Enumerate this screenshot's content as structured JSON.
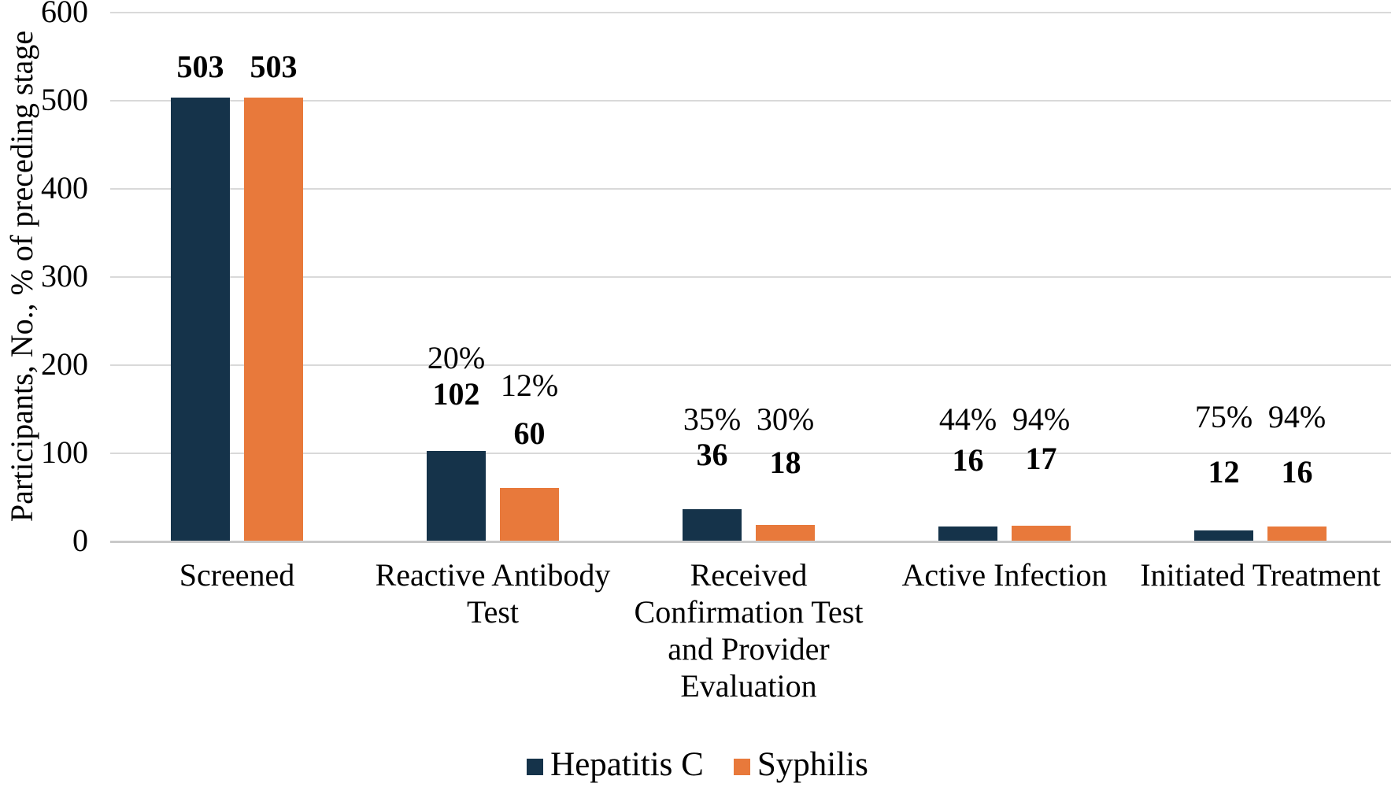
{
  "chart_data": {
    "type": "bar",
    "title": "",
    "xlabel": "",
    "ylabel": "Participants, No., % of preceding stage",
    "ylim": [
      0,
      600
    ],
    "yticks": [
      600,
      500,
      400,
      300,
      200,
      100,
      0
    ],
    "grid": true,
    "legend_position": "bottom-center",
    "categories": [
      {
        "lines": [
          "Screened"
        ]
      },
      {
        "lines": [
          "Reactive Antibody",
          "Test"
        ]
      },
      {
        "lines": [
          "Received",
          "Confirmation Test",
          "and Provider",
          "Evaluation"
        ]
      },
      {
        "lines": [
          "Active Infection"
        ]
      },
      {
        "lines": [
          "Initiated Treatment"
        ]
      }
    ],
    "series": [
      {
        "name": "Hepatitis C",
        "color": "#15334A",
        "values": [
          503,
          102,
          36,
          16,
          12
        ],
        "percent_labels": [
          "",
          "20%",
          "35%",
          "44%",
          "75%"
        ]
      },
      {
        "name": "Syphilis",
        "color": "#E8793B",
        "values": [
          503,
          60,
          18,
          17,
          16
        ],
        "percent_labels": [
          "",
          "12%",
          "30%",
          "94%",
          "94%"
        ]
      }
    ],
    "colors": {
      "gridline": "#D9D9D9",
      "baseline": "#C9C9C9",
      "text": "#000000"
    }
  },
  "legend": {
    "items": [
      {
        "label": "Hepatitis C",
        "color": "#15334A"
      },
      {
        "label": "Syphilis",
        "color": "#E8793B"
      }
    ]
  }
}
